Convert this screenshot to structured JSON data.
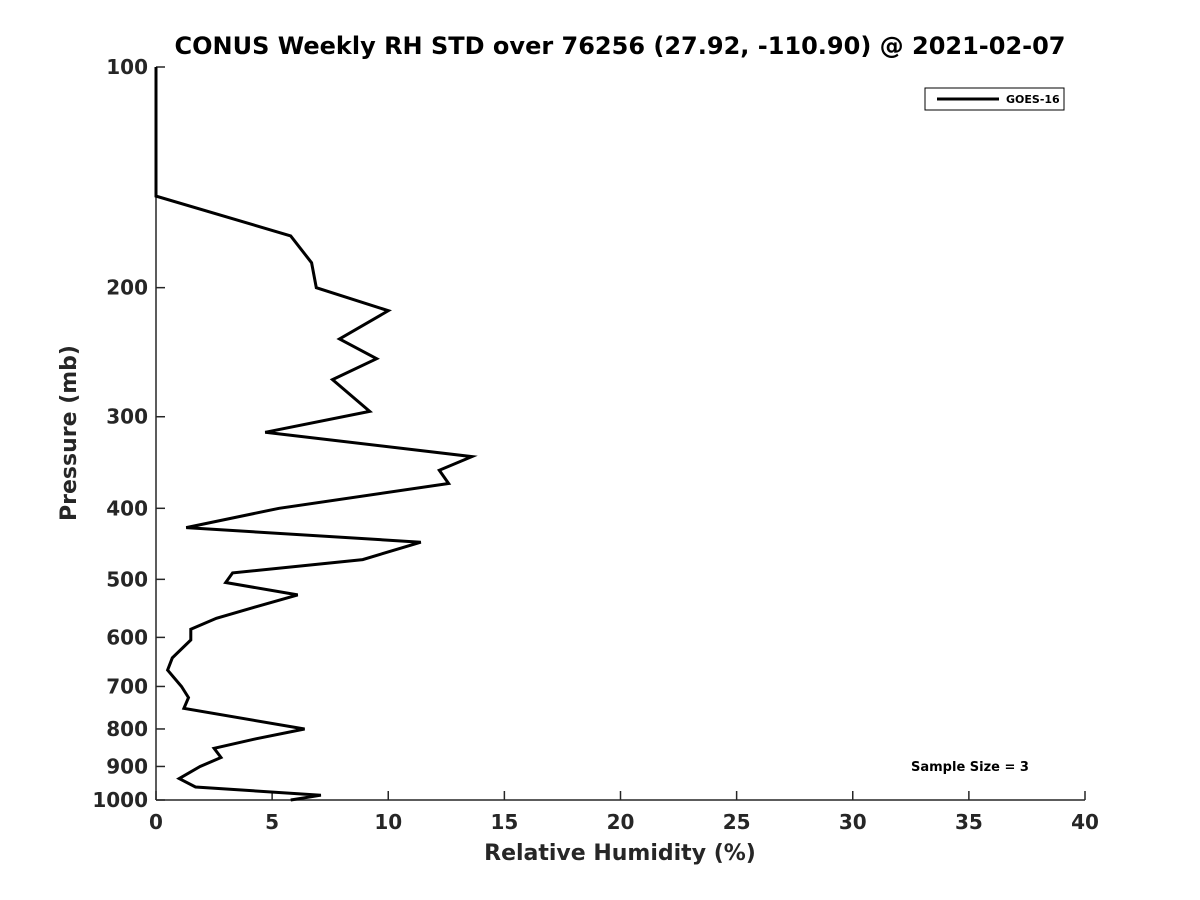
{
  "chart_data": {
    "type": "line",
    "title": "CONUS Weekly RH STD over 76256 (27.92, -110.90) @ 2021-02-07",
    "xlabel": "Relative Humidity (%)",
    "ylabel": "Pressure (mb)",
    "xlim": [
      0,
      40
    ],
    "ylim": [
      100,
      1000
    ],
    "y_scale": "log",
    "y_reversed": true,
    "grid": false,
    "legend_position": "top-right",
    "x_ticks": [
      "0",
      "5",
      "10",
      "15",
      "20",
      "25",
      "30",
      "35",
      "40"
    ],
    "y_ticks": [
      "100",
      "200",
      "300",
      "400",
      "500",
      "600",
      "700",
      "800",
      "900",
      "1000"
    ],
    "series": [
      {
        "name": "GOES-16",
        "color": "#000000",
        "x": [
          0,
          0,
          0,
          5.8,
          6.7,
          6.9,
          10.0,
          7.9,
          9.5,
          7.6,
          9.2,
          4.7,
          13.6,
          12.2,
          12.6,
          5.3,
          1.3,
          11.4,
          8.9,
          3.3,
          3.0,
          6.1,
          4.3,
          2.6,
          1.5,
          1.5,
          0.7,
          0.5,
          1.1,
          1.4,
          1.2,
          6.4,
          4.3,
          2.5,
          2.8,
          1.9,
          1.0,
          1.7,
          7.1,
          5.8
        ],
        "y": [
          100,
          120,
          150,
          170,
          185,
          200,
          215,
          235,
          250,
          267,
          295,
          315,
          340,
          355,
          370,
          400,
          425,
          445,
          470,
          490,
          505,
          525,
          545,
          565,
          585,
          605,
          640,
          665,
          700,
          725,
          750,
          800,
          825,
          850,
          875,
          900,
          935,
          960,
          985,
          1000
        ]
      }
    ],
    "annotations": [
      "Sample Size = 3"
    ]
  }
}
